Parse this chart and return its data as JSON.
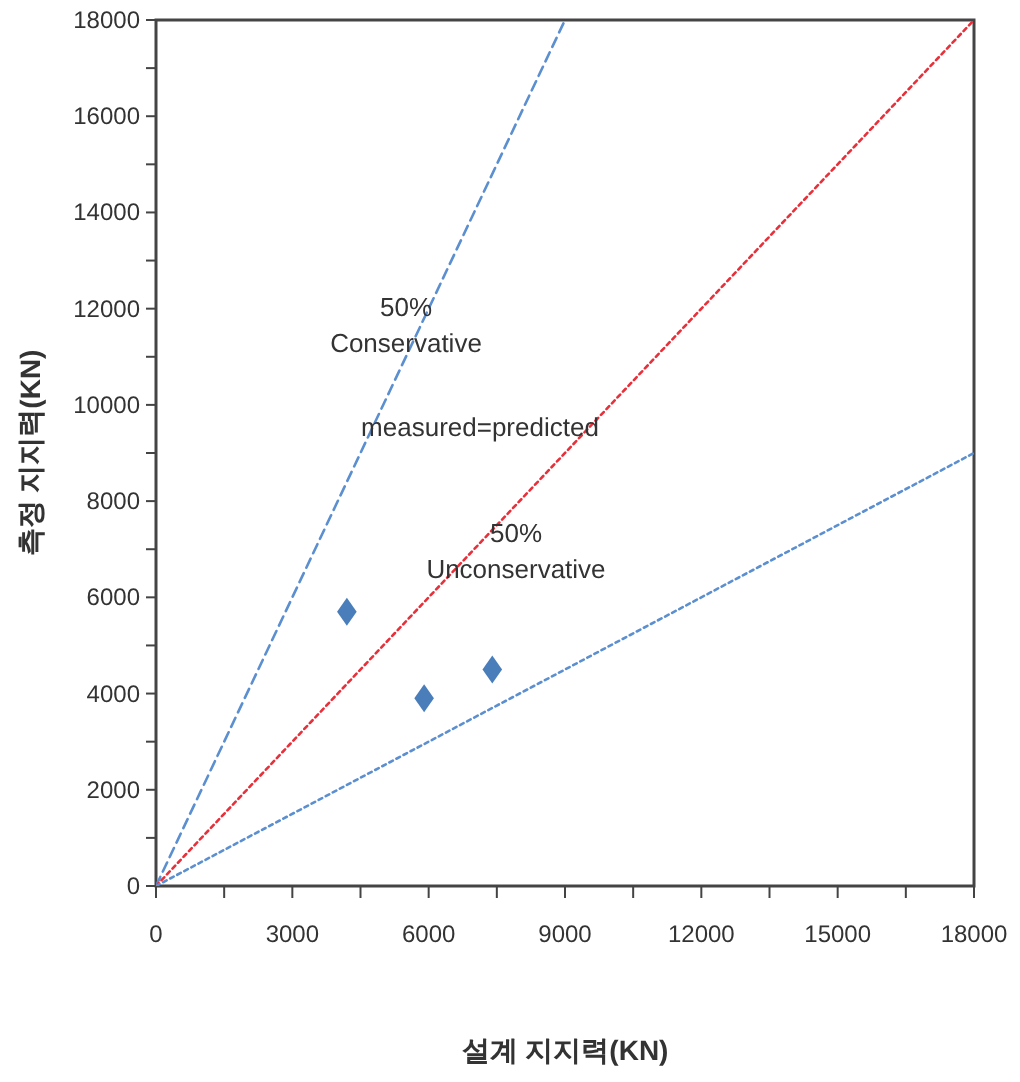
{
  "chart_data": {
    "type": "scatter",
    "xlabel": "설계 지지력(KN)",
    "ylabel": "측정 지지력(KN)",
    "xlim": [
      0,
      18000
    ],
    "ylim": [
      0,
      18000
    ],
    "xticks": [
      0,
      {
        "value": 1500,
        "label": null
      },
      3000,
      {
        "value": 4500,
        "label": null
      },
      6000,
      {
        "value": 7500,
        "label": null
      },
      9000,
      {
        "value": 10500,
        "label": null
      },
      12000,
      {
        "value": 13500,
        "label": null
      },
      15000,
      {
        "value": 16500,
        "label": null
      },
      18000
    ],
    "yticks": [
      0,
      {
        "value": 1000,
        "label": null
      },
      2000,
      {
        "value": 3000,
        "label": null
      },
      4000,
      {
        "value": 5000,
        "label": null
      },
      6000,
      {
        "value": 7000,
        "label": null
      },
      8000,
      {
        "value": 9000,
        "label": null
      },
      10000,
      {
        "value": 11000,
        "label": null
      },
      12000,
      {
        "value": 13000,
        "label": null
      },
      14000,
      {
        "value": 15000,
        "label": null
      },
      16000,
      {
        "value": 17000,
        "label": null
      },
      18000
    ],
    "series": [
      {
        "type": "line",
        "color": "#5b8fd0",
        "x": [
          0,
          9000
        ],
        "values": [
          0,
          18000
        ],
        "line_style": "dashed"
      },
      {
        "type": "line",
        "color": "#e8303a",
        "x": [
          0,
          18000
        ],
        "values": [
          0,
          18000
        ],
        "line_style": "dotted"
      },
      {
        "type": "line",
        "color": "#5b8fd0",
        "x": [
          0,
          18000
        ],
        "values": [
          0,
          9000
        ],
        "line_style": "dotted"
      },
      {
        "color": "#4a7ebb",
        "x": [
          4200,
          5900,
          7400
        ],
        "values": [
          5700,
          3900,
          4500
        ],
        "marker": "diamond"
      }
    ],
    "annotations": [
      "50%\nConservative",
      "measured=predicted",
      "50%\nUnconservative"
    ],
    "grid": false
  }
}
